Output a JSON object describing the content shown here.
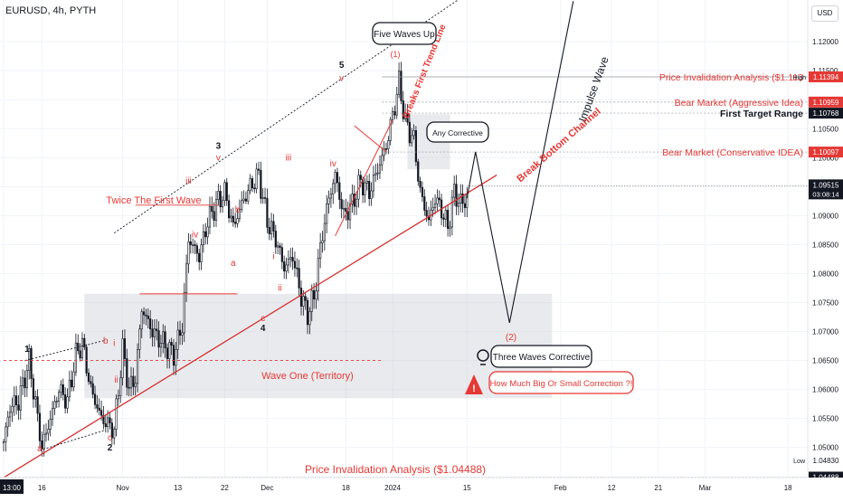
{
  "header": {
    "title": "EURUSD, 4h, PYTH",
    "currency_button": "USD"
  },
  "colors": {
    "up": "#131722",
    "down": "#131722",
    "red": "#e53935",
    "channel": "#d32f2f",
    "grid": "#f0f3fa",
    "box": "#cfd1d6",
    "dash": "#787b86"
  },
  "chart_data": {
    "type": "candlestick",
    "symbol": "EURUSD",
    "interval": "4h",
    "source": "PYTH",
    "ylim": [
      1.0448,
      1.1272
    ],
    "y_ticks": [
      1.05,
      1.055,
      1.06,
      1.065,
      1.07,
      1.075,
      1.08,
      1.085,
      1.09,
      1.095,
      1.1,
      1.105,
      1.11,
      1.115,
      1.12
    ],
    "y_tick_labels": [
      "1.05000",
      "1.05500",
      "1.06000",
      "1.06500",
      "1.07000",
      "1.07500",
      "1.08000",
      "1.08500",
      "1.09000",
      "1.09500",
      "1.10000",
      "1.10500",
      "1.11000",
      "1.11500",
      "1.12000"
    ],
    "x_ticks": [
      {
        "label": "13:00",
        "i": 0
      },
      {
        "label": "16",
        "i": 18
      },
      {
        "label": "Nov",
        "i": 56
      },
      {
        "label": "13",
        "i": 82
      },
      {
        "label": "22",
        "i": 104
      },
      {
        "label": "Dec",
        "i": 124
      },
      {
        "label": "18",
        "i": 161
      },
      {
        "label": "2024",
        "i": 183
      },
      {
        "label": "15",
        "i": 218
      },
      {
        "label": "Feb",
        "i": 262
      },
      {
        "label": "12",
        "i": 286
      },
      {
        "label": "21",
        "i": 308
      },
      {
        "label": "Mar",
        "i": 330
      },
      {
        "label": "18",
        "i": 369
      }
    ],
    "anchors": [
      [
        0,
        1.051
      ],
      [
        3,
        1.057
      ],
      [
        7,
        1.058
      ],
      [
        12,
        1.065
      ],
      [
        18,
        1.05
      ],
      [
        22,
        1.055
      ],
      [
        26,
        1.06
      ],
      [
        30,
        1.058
      ],
      [
        34,
        1.066
      ],
      [
        37,
        1.068
      ],
      [
        41,
        1.06
      ],
      [
        46,
        1.055
      ],
      [
        52,
        1.053
      ],
      [
        56,
        1.067
      ],
      [
        59,
        1.06
      ],
      [
        62,
        1.062
      ],
      [
        65,
        1.074
      ],
      [
        70,
        1.07
      ],
      [
        75,
        1.068
      ],
      [
        80,
        1.066
      ],
      [
        84,
        1.071
      ],
      [
        87,
        1.086
      ],
      [
        92,
        1.083
      ],
      [
        96,
        1.089
      ],
      [
        100,
        1.092
      ],
      [
        104,
        1.094
      ],
      [
        108,
        1.088
      ],
      [
        112,
        1.092
      ],
      [
        116,
        1.095
      ],
      [
        120,
        1.097
      ],
      [
        124,
        1.089
      ],
      [
        128,
        1.086
      ],
      [
        132,
        1.081
      ],
      [
        136,
        1.083
      ],
      [
        140,
        1.076
      ],
      [
        143,
        1.073
      ],
      [
        146,
        1.076
      ],
      [
        150,
        1.087
      ],
      [
        153,
        1.093
      ],
      [
        156,
        1.097
      ],
      [
        160,
        1.09
      ],
      [
        164,
        1.092
      ],
      [
        168,
        1.096
      ],
      [
        172,
        1.094
      ],
      [
        176,
        1.098
      ],
      [
        180,
        1.102
      ],
      [
        184,
        1.109
      ],
      [
        186,
        1.113
      ],
      [
        189,
        1.106
      ],
      [
        193,
        1.103
      ],
      [
        196,
        1.094
      ],
      [
        200,
        1.089
      ],
      [
        203,
        1.093
      ],
      [
        206,
        1.091
      ],
      [
        209,
        1.088
      ],
      [
        212,
        1.094
      ],
      [
        215,
        1.092
      ],
      [
        218,
        1.093
      ]
    ],
    "levels": [
      {
        "label": "Price Invalidation Analysis ($1.113",
        "value": 1.11394,
        "badge": "1.11394",
        "color": "#e53935"
      },
      {
        "label": "Bear Market (Aggressive Idea)",
        "value": 1.10959,
        "badge": "1.10959",
        "color": "#e53935"
      },
      {
        "label": "First Target Range",
        "value": 1.10768,
        "badge": "1.10768",
        "color": "#131722"
      },
      {
        "label": "Bear Market (Conservative IDEA)",
        "value": 1.10097,
        "badge": "1.10097",
        "color": "#e53935"
      }
    ],
    "current_price": {
      "value": 1.09515,
      "label": "1.09515",
      "countdown": "03:08:14"
    },
    "high_label": "High",
    "high_value": "1.11394",
    "low_label": "Low",
    "low_value": "1.04830",
    "low_level": {
      "value": 1.04488,
      "label": "1.04488"
    },
    "projection": [
      [
        218,
        1.093
      ],
      [
        222,
        1.101
      ],
      [
        238,
        1.0715
      ],
      [
        268,
        1.127
      ]
    ],
    "channel": {
      "lower": [
        [
          -8,
          1.043
        ],
        [
          232,
          1.097
        ]
      ],
      "upper_dotted": [
        [
          52,
          1.087
        ],
        [
          196,
          1.1228
        ]
      ]
    },
    "shaded_zones": [
      {
        "i0": 38,
        "i1": 258,
        "y0": 1.0585,
        "y1": 1.0765
      },
      {
        "i0": 190,
        "i1": 210,
        "y0": 1.098,
        "y1": 1.1075
      }
    ]
  },
  "annotations": {
    "five_waves_up": "Five Waves Up",
    "breaks_first_trend_line": "Breaks First Trend Line",
    "impulse_wave": "Impulse Wave",
    "break_bottom_channel": "Break Bottom Channel",
    "any_corrective": "Any Corrective",
    "twice_first_wave": "Twice The First Wave",
    "wave_one_territory": "Wave One (Territory)",
    "three_waves_corrective": "Three Waves Corrective",
    "how_much": "How Much Big Or Small Correction ?!",
    "bottom_invalidation": "Price Invalidation Analysis ($1.04488)",
    "wave_2_paren": "(2)",
    "wave_1_paren": "(1)"
  },
  "wave_labels": [
    {
      "t": "1",
      "i": 11,
      "y": 1.0665,
      "c": "#131722"
    },
    {
      "t": "a",
      "i": 17,
      "y": 1.0493,
      "c": "#e53935"
    },
    {
      "t": "b",
      "i": 48,
      "y": 1.0679,
      "c": "#e53935"
    },
    {
      "t": "i",
      "i": 52,
      "y": 1.0675,
      "c": "#e53935"
    },
    {
      "t": "ii",
      "i": 53,
      "y": 1.0612,
      "c": "#e53935"
    },
    {
      "t": "c",
      "i": 50,
      "y": 1.0512,
      "c": "#e53935"
    },
    {
      "t": "2",
      "i": 50,
      "y": 1.0495,
      "c": "#131722"
    },
    {
      "t": "iii",
      "i": 87,
      "y": 1.0955,
      "c": "#e53935"
    },
    {
      "t": "iv",
      "i": 90,
      "y": 1.0862,
      "c": "#e53935"
    },
    {
      "t": "3",
      "i": 101,
      "y": 1.1015,
      "c": "#131722"
    },
    {
      "t": "v",
      "i": 101,
      "y": 1.0995,
      "c": "#e53935"
    },
    {
      "t": "b",
      "i": 110,
      "y": 1.0905,
      "c": "#e53935"
    },
    {
      "t": "a",
      "i": 108,
      "y": 1.0813,
      "c": "#e53935"
    },
    {
      "t": "c",
      "i": 122,
      "y": 1.0718,
      "c": "#e53935"
    },
    {
      "t": "4",
      "i": 122,
      "y": 1.0701,
      "c": "#131722"
    },
    {
      "t": "i",
      "i": 127,
      "y": 1.0825,
      "c": "#e53935"
    },
    {
      "t": "ii",
      "i": 130,
      "y": 1.077,
      "c": "#e53935"
    },
    {
      "t": "iii",
      "i": 134,
      "y": 1.0995,
      "c": "#e53935"
    },
    {
      "t": "iv",
      "i": 155,
      "y": 1.0985,
      "c": "#e53935"
    },
    {
      "t": "5",
      "i": 159,
      "y": 1.1155,
      "c": "#131722"
    },
    {
      "t": "v",
      "i": 159,
      "y": 1.1132,
      "c": "#e53935"
    }
  ]
}
